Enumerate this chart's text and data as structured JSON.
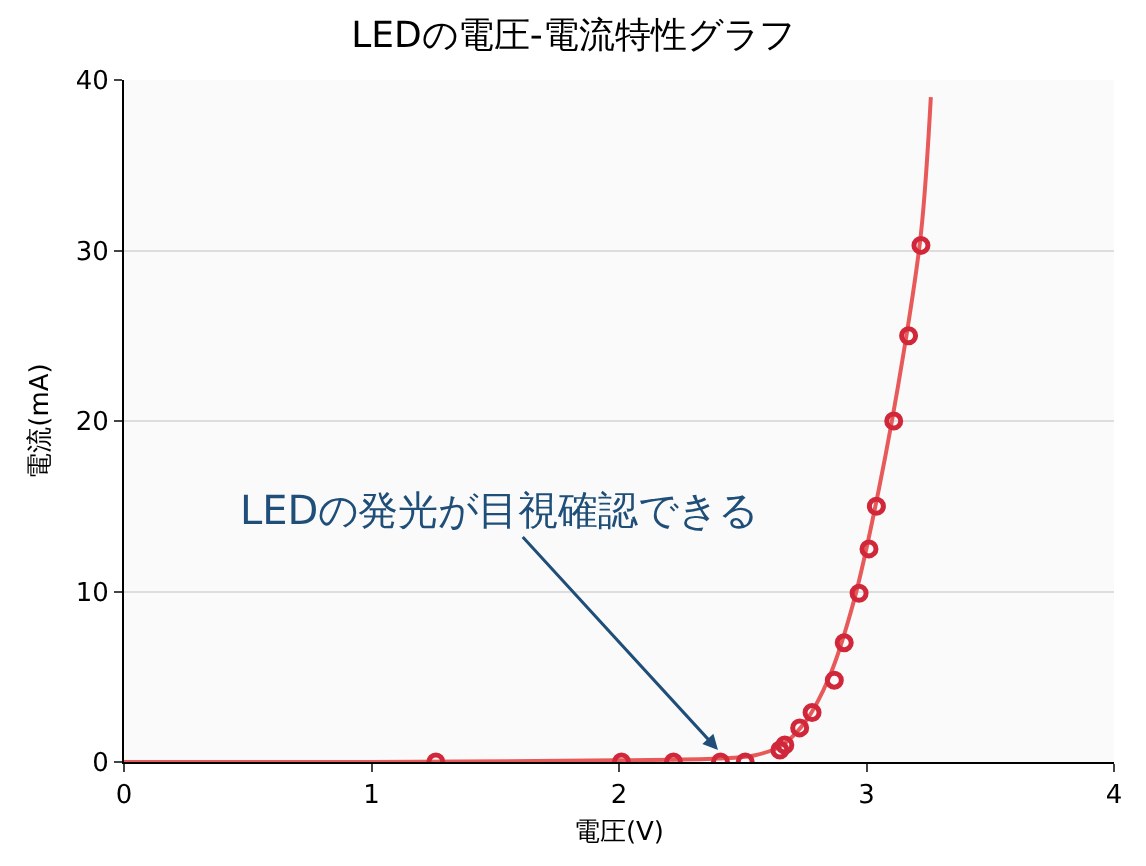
{
  "chart_data": {
    "type": "scatter",
    "title": "LEDの電圧-電流特性グラフ",
    "xlabel": "電圧(V)",
    "ylabel": "電流(mA)",
    "xlim": [
      0,
      4
    ],
    "xticks": [
      0,
      1,
      2,
      3,
      4
    ],
    "ylim": [
      0,
      40
    ],
    "yticks": [
      0,
      10,
      20,
      30,
      40
    ],
    "grid": "y",
    "marker": "circle",
    "series": [
      {
        "type": "line",
        "color": "#e8595a",
        "marker": "none",
        "x": [
          0,
          1,
          2,
          2.4,
          2.55,
          2.65,
          2.75,
          2.85,
          2.95,
          3.05,
          3.15,
          3.22,
          3.26
        ],
        "values": [
          0,
          0,
          0.1,
          0.2,
          0.4,
          0.9,
          2.3,
          5,
          9.5,
          16,
          24,
          31,
          39
        ]
      },
      {
        "color": "#d0283a",
        "x": [
          1.26,
          2.01,
          2.22,
          2.41,
          2.51,
          2.65,
          2.67,
          2.73,
          2.78,
          2.87,
          2.91,
          2.97,
          3.01,
          3.04,
          3.11,
          3.17,
          3.22
        ],
        "values": [
          0,
          0,
          0,
          0,
          0,
          0.7,
          1,
          2,
          2.9,
          4.8,
          7,
          9.9,
          12.5,
          15,
          20,
          25,
          30.3
        ]
      }
    ],
    "annotations": [
      {
        "text": "LEDの発光が目視確認できる",
        "x": 2.4,
        "y": 0
      }
    ]
  }
}
